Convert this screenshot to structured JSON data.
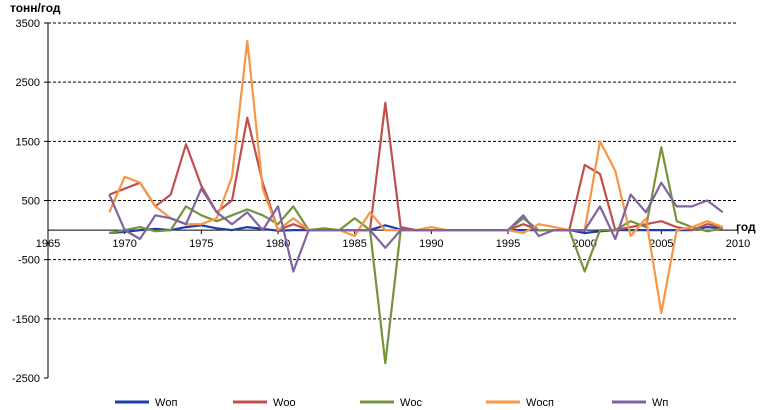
{
  "chart_data": {
    "type": "line",
    "ylabel": "тонн/год",
    "xlabel": "год",
    "xlim": [
      1965,
      2010
    ],
    "ylim": [
      -2500,
      3500
    ],
    "xticks": [
      1965,
      1970,
      1975,
      1980,
      1985,
      1990,
      1995,
      2000,
      2005,
      2010
    ],
    "yticks": [
      -2500,
      -1500,
      -500,
      500,
      1500,
      2500,
      3500
    ],
    "grid": "dashed horizontal at 1000-unit intervals",
    "legend_position": "bottom",
    "x": [
      1969,
      1970,
      1971,
      1972,
      1973,
      1974,
      1975,
      1976,
      1977,
      1978,
      1979,
      1980,
      1981,
      1982,
      1983,
      1984,
      1985,
      1986,
      1987,
      1988,
      1989,
      1990,
      1991,
      1992,
      1993,
      1994,
      1995,
      1996,
      1997,
      1998,
      1999,
      2000,
      2001,
      2002,
      2003,
      2004,
      2005,
      2006,
      2007,
      2008,
      2009
    ],
    "series": [
      {
        "name": "Wоп",
        "color": "#1f3ea8",
        "values": [
          -50,
          -30,
          0,
          20,
          0,
          50,
          80,
          30,
          0,
          50,
          20,
          -10,
          0,
          0,
          0,
          0,
          0,
          0,
          80,
          10,
          0,
          0,
          0,
          0,
          0,
          0,
          0,
          0,
          0,
          0,
          0,
          -50,
          -20,
          0,
          0,
          0,
          0,
          0,
          0,
          50,
          30
        ]
      },
      {
        "name": "Wоо",
        "color": "#c0504d",
        "values": [
          600,
          700,
          800,
          400,
          600,
          1450,
          750,
          300,
          500,
          1900,
          800,
          0,
          100,
          0,
          0,
          0,
          0,
          0,
          2150,
          50,
          0,
          0,
          0,
          0,
          0,
          0,
          0,
          100,
          0,
          0,
          0,
          1100,
          950,
          0,
          50,
          100,
          150,
          50,
          0,
          100,
          50
        ]
      },
      {
        "name": "Wос",
        "color": "#77933c",
        "values": [
          -50,
          0,
          50,
          -20,
          0,
          400,
          250,
          150,
          250,
          350,
          250,
          100,
          400,
          0,
          30,
          0,
          200,
          0,
          -2250,
          0,
          0,
          0,
          0,
          0,
          0,
          0,
          0,
          200,
          0,
          0,
          0,
          -700,
          0,
          0,
          150,
          50,
          1400,
          150,
          50,
          -20,
          30
        ]
      },
      {
        "name": "Wосп",
        "color": "#f79646",
        "values": [
          300,
          900,
          800,
          400,
          200,
          100,
          100,
          200,
          900,
          3200,
          700,
          0,
          200,
          0,
          0,
          0,
          -100,
          300,
          0,
          0,
          0,
          50,
          0,
          0,
          0,
          0,
          0,
          -50,
          100,
          50,
          0,
          0,
          1500,
          1000,
          -100,
          200,
          -1400,
          0,
          50,
          150,
          50
        ]
      },
      {
        "name": "Wп",
        "color": "#8064a2",
        "values": [
          600,
          0,
          -150,
          250,
          200,
          100,
          700,
          300,
          100,
          300,
          0,
          400,
          -700,
          0,
          0,
          0,
          0,
          0,
          -300,
          0,
          0,
          0,
          0,
          0,
          0,
          0,
          0,
          250,
          -100,
          0,
          0,
          0,
          400,
          -150,
          600,
          300,
          800,
          400,
          400,
          500,
          300
        ]
      }
    ]
  }
}
